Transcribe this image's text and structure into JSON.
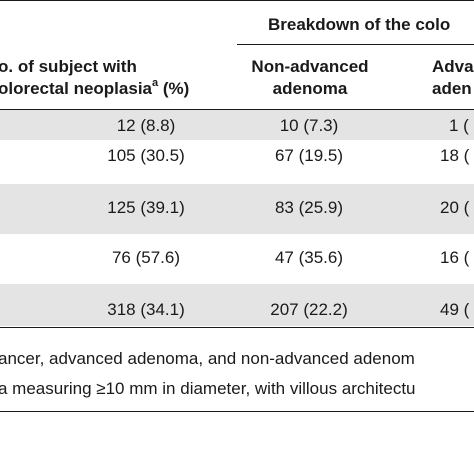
{
  "header": {
    "breakdown": "Breakdown of the colo",
    "col1_line1": "o. of subject with",
    "col1_line2": "olorectal neoplasia",
    "col1_sup": "a",
    "col1_suffix": " (%)",
    "col2_line1": "Non-advanced",
    "col2_line2": "adenoma",
    "col3_line1": "Adva",
    "col3_line2": "aden"
  },
  "rows": [
    {
      "c1": "12 (8.8)",
      "c2": "10 (7.3)",
      "c3": "1 ("
    },
    {
      "c1": "105 (30.5)",
      "c2": "67 (19.5)",
      "c3": "18 ("
    },
    {
      "c1": "125 (39.1)",
      "c2": "83 (25.9)",
      "c3": "20 ("
    },
    {
      "c1": "76 (57.6)",
      "c2": "47 (35.6)",
      "c3": "16 ("
    },
    {
      "c1": "318 (34.1)",
      "c2": "207 (22.2)",
      "c3": "49 ("
    }
  ],
  "footnotes": [
    "ancer, advanced adenoma, and non-advanced adenom",
    "a measuring ≥10 mm in diameter, with villous architectu"
  ]
}
